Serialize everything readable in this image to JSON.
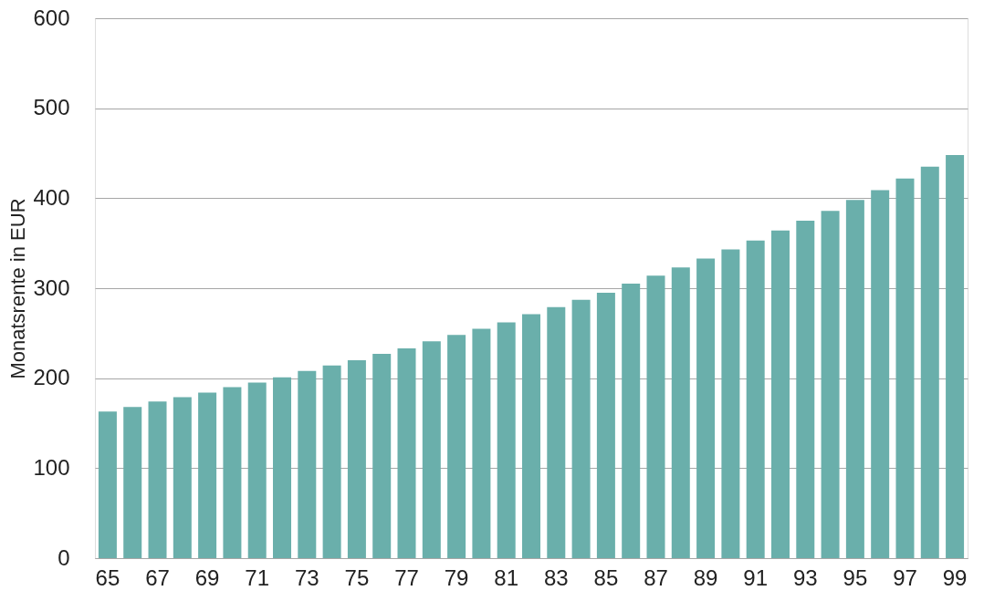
{
  "chart_data": {
    "type": "bar",
    "ylabel": "Monatsrente in EUR",
    "categories": [
      "65",
      null,
      "67",
      null,
      "69",
      null,
      "71",
      null,
      "73",
      null,
      "75",
      null,
      "77",
      null,
      "79",
      null,
      "81",
      null,
      "83",
      null,
      "85",
      null,
      "87",
      null,
      "89",
      null,
      "91",
      null,
      "93",
      null,
      "95",
      null,
      "97",
      null,
      "99"
    ],
    "values": [
      163,
      168,
      174,
      179,
      184,
      190,
      195,
      201,
      208,
      214,
      220,
      227,
      233,
      241,
      248,
      255,
      262,
      271,
      279,
      287,
      295,
      305,
      314,
      323,
      333,
      343,
      353,
      364,
      375,
      386,
      398,
      409,
      422,
      435,
      448
    ],
    "color": "#6aafab",
    "ylim": [
      0,
      600
    ],
    "yticks": [
      0,
      100,
      200,
      300,
      400,
      500,
      600
    ],
    "grid": "y"
  }
}
